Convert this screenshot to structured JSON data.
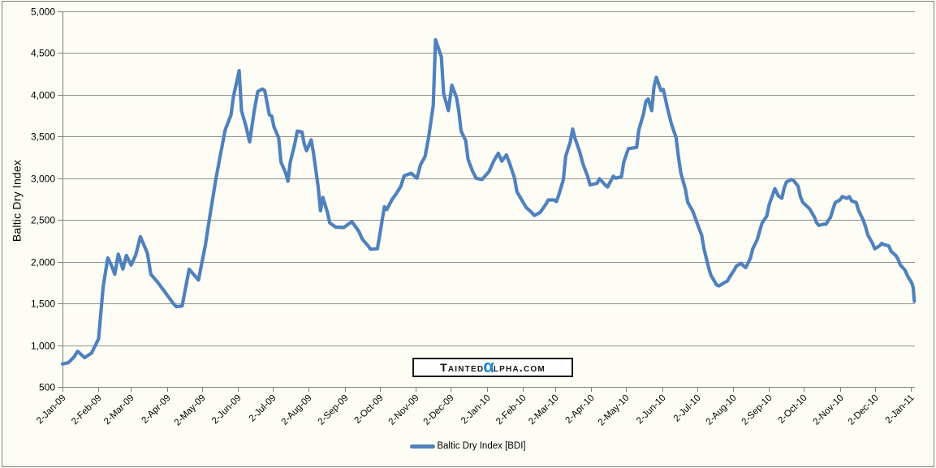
{
  "chart_data": {
    "type": "line",
    "title": "",
    "xlabel": "",
    "ylabel": "Baltic Dry Index",
    "ylim": [
      500,
      5000
    ],
    "ytick_step": 500,
    "yticks": [
      500,
      1000,
      1500,
      2000,
      2500,
      3000,
      3500,
      4000,
      4500,
      5000
    ],
    "grid": "horizontal",
    "legend_position": "bottom",
    "x_range": [
      "2009-01-02",
      "2011-01-02"
    ],
    "x_ticks": [
      {
        "d": "2009-01-02",
        "label": "2-Jan-09"
      },
      {
        "d": "2009-02-02",
        "label": "2-Feb-09"
      },
      {
        "d": "2009-03-02",
        "label": "2-Mar-09"
      },
      {
        "d": "2009-04-02",
        "label": "2-Apr-09"
      },
      {
        "d": "2009-05-02",
        "label": "2-May-09"
      },
      {
        "d": "2009-06-02",
        "label": "2-Jun-09"
      },
      {
        "d": "2009-07-02",
        "label": "2-Jul-09"
      },
      {
        "d": "2009-08-02",
        "label": "2-Aug-09"
      },
      {
        "d": "2009-09-02",
        "label": "2-Sep-09"
      },
      {
        "d": "2009-10-02",
        "label": "2-Oct-09"
      },
      {
        "d": "2009-11-02",
        "label": "2-Nov-09"
      },
      {
        "d": "2009-12-02",
        "label": "2-Dec-09"
      },
      {
        "d": "2010-01-02",
        "label": "2-Jan-10"
      },
      {
        "d": "2010-02-02",
        "label": "2-Feb-10"
      },
      {
        "d": "2010-03-02",
        "label": "2-Mar-10"
      },
      {
        "d": "2010-04-02",
        "label": "2-Apr-10"
      },
      {
        "d": "2010-05-02",
        "label": "2-May-10"
      },
      {
        "d": "2010-06-02",
        "label": "2-Jun-10"
      },
      {
        "d": "2010-07-02",
        "label": "2-Jul-10"
      },
      {
        "d": "2010-08-02",
        "label": "2-Aug-10"
      },
      {
        "d": "2010-09-02",
        "label": "2-Sep-10"
      },
      {
        "d": "2010-10-02",
        "label": "2-Oct-10"
      },
      {
        "d": "2010-11-02",
        "label": "2-Nov-10"
      },
      {
        "d": "2010-12-02",
        "label": "2-Dec-10"
      },
      {
        "d": "2011-01-02",
        "label": "2-Jan-11"
      }
    ],
    "series": [
      {
        "name": "Baltic Dry Index [BDI]",
        "color": "#4F81BD",
        "points": [
          [
            "2009-01-02",
            775
          ],
          [
            "2009-01-07",
            790
          ],
          [
            "2009-01-12",
            860
          ],
          [
            "2009-01-15",
            928
          ],
          [
            "2009-01-21",
            850
          ],
          [
            "2009-01-27",
            905
          ],
          [
            "2009-02-02",
            1075
          ],
          [
            "2009-02-06",
            1700
          ],
          [
            "2009-02-10",
            2045
          ],
          [
            "2009-02-13",
            1960
          ],
          [
            "2009-02-16",
            1850
          ],
          [
            "2009-02-19",
            2090
          ],
          [
            "2009-02-23",
            1912
          ],
          [
            "2009-02-26",
            2075
          ],
          [
            "2009-03-02",
            1960
          ],
          [
            "2009-03-06",
            2080
          ],
          [
            "2009-03-10",
            2300
          ],
          [
            "2009-03-16",
            2105
          ],
          [
            "2009-03-19",
            1850
          ],
          [
            "2009-03-25",
            1752
          ],
          [
            "2009-03-31",
            1640
          ],
          [
            "2009-04-07",
            1505
          ],
          [
            "2009-04-10",
            1460
          ],
          [
            "2009-04-15",
            1470
          ],
          [
            "2009-04-21",
            1910
          ],
          [
            "2009-04-29",
            1780
          ],
          [
            "2009-05-05",
            2205
          ],
          [
            "2009-05-08",
            2480
          ],
          [
            "2009-05-14",
            2995
          ],
          [
            "2009-05-18",
            3290
          ],
          [
            "2009-05-22",
            3580
          ],
          [
            "2009-05-27",
            3760
          ],
          [
            "2009-05-29",
            3970
          ],
          [
            "2009-06-03",
            4290
          ],
          [
            "2009-06-05",
            3810
          ],
          [
            "2009-06-09",
            3615
          ],
          [
            "2009-06-12",
            3435
          ],
          [
            "2009-06-16",
            3810
          ],
          [
            "2009-06-19",
            4040
          ],
          [
            "2009-06-23",
            4070
          ],
          [
            "2009-06-25",
            4050
          ],
          [
            "2009-06-29",
            3760
          ],
          [
            "2009-07-01",
            3745
          ],
          [
            "2009-07-03",
            3615
          ],
          [
            "2009-07-07",
            3485
          ],
          [
            "2009-07-09",
            3195
          ],
          [
            "2009-07-13",
            3065
          ],
          [
            "2009-07-15",
            2965
          ],
          [
            "2009-07-17",
            3195
          ],
          [
            "2009-07-21",
            3420
          ],
          [
            "2009-07-23",
            3565
          ],
          [
            "2009-07-27",
            3555
          ],
          [
            "2009-07-29",
            3410
          ],
          [
            "2009-07-31",
            3330
          ],
          [
            "2009-08-04",
            3460
          ],
          [
            "2009-08-06",
            3300
          ],
          [
            "2009-08-10",
            2900
          ],
          [
            "2009-08-12",
            2610
          ],
          [
            "2009-08-14",
            2770
          ],
          [
            "2009-08-18",
            2590
          ],
          [
            "2009-08-20",
            2465
          ],
          [
            "2009-08-25",
            2415
          ],
          [
            "2009-09-01",
            2410
          ],
          [
            "2009-09-08",
            2480
          ],
          [
            "2009-09-14",
            2365
          ],
          [
            "2009-09-17",
            2270
          ],
          [
            "2009-09-22",
            2190
          ],
          [
            "2009-09-24",
            2150
          ],
          [
            "2009-09-30",
            2155
          ],
          [
            "2009-10-02",
            2320
          ],
          [
            "2009-10-06",
            2660
          ],
          [
            "2009-10-08",
            2625
          ],
          [
            "2009-10-13",
            2755
          ],
          [
            "2009-10-15",
            2790
          ],
          [
            "2009-10-20",
            2900
          ],
          [
            "2009-10-23",
            3030
          ],
          [
            "2009-10-29",
            3060
          ],
          [
            "2009-11-03",
            3000
          ],
          [
            "2009-11-06",
            3160
          ],
          [
            "2009-11-10",
            3260
          ],
          [
            "2009-11-13",
            3485
          ],
          [
            "2009-11-17",
            3875
          ],
          [
            "2009-11-19",
            4660
          ],
          [
            "2009-11-24",
            4455
          ],
          [
            "2009-11-26",
            4015
          ],
          [
            "2009-11-30",
            3810
          ],
          [
            "2009-12-03",
            4115
          ],
          [
            "2009-12-07",
            3970
          ],
          [
            "2009-12-09",
            3810
          ],
          [
            "2009-12-11",
            3565
          ],
          [
            "2009-12-15",
            3450
          ],
          [
            "2009-12-17",
            3225
          ],
          [
            "2009-12-21",
            3080
          ],
          [
            "2009-12-24",
            3000
          ],
          [
            "2009-12-29",
            2985
          ],
          [
            "2010-01-04",
            3080
          ],
          [
            "2010-01-08",
            3205
          ],
          [
            "2010-01-12",
            3300
          ],
          [
            "2010-01-15",
            3205
          ],
          [
            "2010-01-19",
            3280
          ],
          [
            "2010-01-22",
            3170
          ],
          [
            "2010-01-26",
            3000
          ],
          [
            "2010-01-28",
            2840
          ],
          [
            "2010-02-02",
            2720
          ],
          [
            "2010-02-05",
            2650
          ],
          [
            "2010-02-09",
            2600
          ],
          [
            "2010-02-12",
            2555
          ],
          [
            "2010-02-17",
            2590
          ],
          [
            "2010-02-22",
            2690
          ],
          [
            "2010-02-24",
            2740
          ],
          [
            "2010-03-01",
            2740
          ],
          [
            "2010-03-03",
            2720
          ],
          [
            "2010-03-05",
            2800
          ],
          [
            "2010-03-09",
            2985
          ],
          [
            "2010-03-11",
            3260
          ],
          [
            "2010-03-15",
            3440
          ],
          [
            "2010-03-17",
            3590
          ],
          [
            "2010-03-19",
            3480
          ],
          [
            "2010-03-23",
            3320
          ],
          [
            "2010-03-26",
            3165
          ],
          [
            "2010-03-30",
            3020
          ],
          [
            "2010-04-01",
            2920
          ],
          [
            "2010-04-07",
            2940
          ],
          [
            "2010-04-09",
            2995
          ],
          [
            "2010-04-14",
            2920
          ],
          [
            "2010-04-16",
            2895
          ],
          [
            "2010-04-21",
            3025
          ],
          [
            "2010-04-23",
            3000
          ],
          [
            "2010-04-28",
            3020
          ],
          [
            "2010-04-30",
            3195
          ],
          [
            "2010-05-04",
            3355
          ],
          [
            "2010-05-07",
            3360
          ],
          [
            "2010-05-11",
            3370
          ],
          [
            "2010-05-13",
            3580
          ],
          [
            "2010-05-17",
            3775
          ],
          [
            "2010-05-19",
            3920
          ],
          [
            "2010-05-21",
            3950
          ],
          [
            "2010-05-24",
            3810
          ],
          [
            "2010-05-26",
            4095
          ],
          [
            "2010-05-28",
            4210
          ],
          [
            "2010-06-01",
            4050
          ],
          [
            "2010-06-03",
            4065
          ],
          [
            "2010-06-07",
            3815
          ],
          [
            "2010-06-10",
            3650
          ],
          [
            "2010-06-14",
            3490
          ],
          [
            "2010-06-16",
            3260
          ],
          [
            "2010-06-18",
            3065
          ],
          [
            "2010-06-22",
            2870
          ],
          [
            "2010-06-24",
            2710
          ],
          [
            "2010-06-28",
            2615
          ],
          [
            "2010-06-30",
            2545
          ],
          [
            "2010-07-02",
            2465
          ],
          [
            "2010-07-06",
            2320
          ],
          [
            "2010-07-08",
            2155
          ],
          [
            "2010-07-12",
            1930
          ],
          [
            "2010-07-14",
            1835
          ],
          [
            "2010-07-19",
            1720
          ],
          [
            "2010-07-21",
            1710
          ],
          [
            "2010-07-26",
            1755
          ],
          [
            "2010-07-28",
            1765
          ],
          [
            "2010-07-30",
            1815
          ],
          [
            "2010-08-03",
            1900
          ],
          [
            "2010-08-05",
            1950
          ],
          [
            "2010-08-09",
            1980
          ],
          [
            "2010-08-11",
            1950
          ],
          [
            "2010-08-13",
            1930
          ],
          [
            "2010-08-17",
            2045
          ],
          [
            "2010-08-19",
            2155
          ],
          [
            "2010-08-23",
            2270
          ],
          [
            "2010-08-25",
            2370
          ],
          [
            "2010-08-27",
            2465
          ],
          [
            "2010-08-31",
            2545
          ],
          [
            "2010-09-02",
            2680
          ],
          [
            "2010-09-07",
            2875
          ],
          [
            "2010-09-10",
            2790
          ],
          [
            "2010-09-13",
            2760
          ],
          [
            "2010-09-15",
            2885
          ],
          [
            "2010-09-17",
            2955
          ],
          [
            "2010-09-21",
            2985
          ],
          [
            "2010-09-23",
            2975
          ],
          [
            "2010-09-27",
            2905
          ],
          [
            "2010-09-29",
            2780
          ],
          [
            "2010-10-01",
            2710
          ],
          [
            "2010-10-05",
            2660
          ],
          [
            "2010-10-07",
            2630
          ],
          [
            "2010-10-11",
            2535
          ],
          [
            "2010-10-13",
            2465
          ],
          [
            "2010-10-15",
            2435
          ],
          [
            "2010-10-19",
            2450
          ],
          [
            "2010-10-21",
            2450
          ],
          [
            "2010-10-25",
            2535
          ],
          [
            "2010-10-27",
            2630
          ],
          [
            "2010-10-29",
            2710
          ],
          [
            "2010-11-02",
            2740
          ],
          [
            "2010-11-04",
            2780
          ],
          [
            "2010-11-08",
            2760
          ],
          [
            "2010-11-10",
            2780
          ],
          [
            "2010-11-12",
            2730
          ],
          [
            "2010-11-16",
            2710
          ],
          [
            "2010-11-18",
            2615
          ],
          [
            "2010-11-22",
            2500
          ],
          [
            "2010-11-24",
            2420
          ],
          [
            "2010-11-26",
            2320
          ],
          [
            "2010-11-30",
            2220
          ],
          [
            "2010-12-02",
            2155
          ],
          [
            "2010-12-06",
            2190
          ],
          [
            "2010-12-08",
            2220
          ],
          [
            "2010-12-10",
            2205
          ],
          [
            "2010-12-14",
            2190
          ],
          [
            "2010-12-16",
            2125
          ],
          [
            "2010-12-20",
            2075
          ],
          [
            "2010-12-22",
            2030
          ],
          [
            "2010-12-24",
            1960
          ],
          [
            "2010-12-28",
            1900
          ],
          [
            "2010-12-30",
            1835
          ],
          [
            "2011-01-03",
            1740
          ],
          [
            "2011-01-04",
            1690
          ],
          [
            "2011-01-05",
            1525
          ]
        ]
      }
    ]
  },
  "legend": {
    "label": "Baltic Dry Index [BDI]"
  },
  "watermark": {
    "prefix": "Tainted",
    "alpha": "α",
    "suffix": "lpha.com"
  },
  "colors": {
    "line": "#4F81BD",
    "gridline": "#909090",
    "axis": "#808080",
    "text": "#000000",
    "watermark_alpha": "#1d87c6",
    "background": "#fdfdf6",
    "border": "#808080"
  }
}
